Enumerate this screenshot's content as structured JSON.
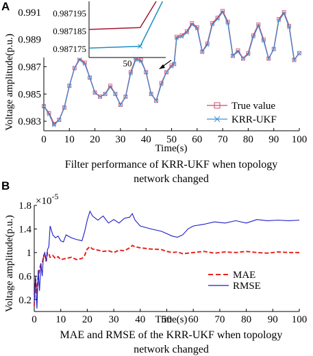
{
  "chart_data": [
    {
      "panel_label": "A",
      "type": "line",
      "caption": [
        "Filter performance of KRR-UKF when topology",
        "network changed"
      ],
      "xlabel": "Time(s)",
      "ylabel": "Voltage amplitude(p.u.)",
      "xlim": [
        0,
        100
      ],
      "ylim": [
        0.9823,
        0.9918
      ],
      "xticks": [
        0,
        10,
        20,
        30,
        40,
        50,
        60,
        70,
        80,
        90,
        100
      ],
      "yticks": [
        0.983,
        0.985,
        0.987,
        0.989,
        0.991
      ],
      "legend_position": "bottom-right",
      "series": [
        {
          "name": "True value",
          "color": "#c94b6a",
          "marker": "square",
          "x": [
            0,
            2,
            4,
            6,
            8,
            10,
            12,
            14,
            16,
            18,
            20,
            22,
            24,
            26,
            28,
            30,
            32,
            34,
            36,
            38,
            40,
            42,
            44,
            46,
            48,
            50,
            51,
            52,
            54,
            56,
            58,
            60,
            62,
            64,
            66,
            68,
            70,
            72,
            74,
            76,
            78,
            80,
            82,
            84,
            86,
            88,
            90,
            92,
            94,
            96,
            98,
            100
          ],
          "values": [
            0.9841,
            0.9836,
            0.9828,
            0.9831,
            0.984,
            0.9856,
            0.9869,
            0.9876,
            0.9873,
            0.9862,
            0.9851,
            0.9848,
            0.985,
            0.9856,
            0.985,
            0.9842,
            0.9848,
            0.9866,
            0.9876,
            0.9875,
            0.9866,
            0.985,
            0.9845,
            0.9858,
            0.9866,
            0.9871,
            0.9872,
            0.9892,
            0.9893,
            0.9896,
            0.9902,
            0.9899,
            0.9881,
            0.9887,
            0.9902,
            0.9906,
            0.9911,
            0.9903,
            0.9878,
            0.9882,
            0.9876,
            0.988,
            0.9893,
            0.9901,
            0.989,
            0.9876,
            0.9883,
            0.9905,
            0.991,
            0.99,
            0.9875,
            0.988
          ]
        },
        {
          "name": "KRR-UKF",
          "color": "#3b8fd4",
          "marker": "x",
          "x": [
            0,
            2,
            4,
            6,
            8,
            10,
            12,
            14,
            16,
            18,
            20,
            22,
            24,
            26,
            28,
            30,
            32,
            34,
            36,
            38,
            40,
            42,
            44,
            46,
            48,
            50,
            51,
            52,
            54,
            56,
            58,
            60,
            62,
            64,
            66,
            68,
            70,
            72,
            74,
            76,
            78,
            80,
            82,
            84,
            86,
            88,
            90,
            92,
            94,
            96,
            98,
            100
          ],
          "values": [
            0.9841,
            0.9835,
            0.9827,
            0.9831,
            0.984,
            0.9856,
            0.9869,
            0.9875,
            0.9872,
            0.9862,
            0.9851,
            0.9848,
            0.985,
            0.9855,
            0.985,
            0.9842,
            0.9848,
            0.9865,
            0.9875,
            0.9874,
            0.9866,
            0.985,
            0.9845,
            0.9857,
            0.9866,
            0.987,
            0.9872,
            0.9891,
            0.9892,
            0.9895,
            0.9901,
            0.9898,
            0.9881,
            0.9886,
            0.9901,
            0.9905,
            0.991,
            0.9902,
            0.9878,
            0.9881,
            0.9876,
            0.9879,
            0.9892,
            0.99,
            0.9889,
            0.9876,
            0.9883,
            0.9904,
            0.9909,
            0.9899,
            0.9875,
            0.988
          ]
        }
      ],
      "inset": {
        "yticks": [
          "0.987195",
          "0.987185",
          "0.987175"
        ],
        "xtick": "50",
        "xlim": [
          44,
          56
        ],
        "ylim": [
          0.98717,
          0.9872
        ],
        "series": [
          {
            "name": "True value",
            "x": [
              44,
              52,
              54.5
            ],
            "values": [
              0.987185,
              0.987186,
              0.9872
            ]
          },
          {
            "name": "KRR-UKF",
            "x": [
              44,
              52,
              55.5
            ],
            "values": [
              0.987175,
              0.987176,
              0.9872
            ]
          }
        ]
      }
    },
    {
      "panel_label": "B",
      "type": "line",
      "caption": [
        "MAE and RMSE of the KRR-UKF when topology",
        "network changed"
      ],
      "xlabel": "Time(s)",
      "ylabel": "Voltage amplitude(p.u.)",
      "scale_label": "×10",
      "scale_exponent": "-5",
      "xlim": [
        0,
        100
      ],
      "ylim": [
        0,
        1.8
      ],
      "xticks": [
        0,
        10,
        20,
        30,
        40,
        50,
        60,
        70,
        80,
        90,
        100
      ],
      "yticks": [
        "0.2",
        "0.6",
        "1",
        "1.4",
        "1.8"
      ],
      "ytick_values": [
        0.2,
        0.6,
        1.0,
        1.4,
        1.8
      ],
      "legend_position": "bottom-right",
      "series": [
        {
          "name": "MAE",
          "color": "#e8231e",
          "dash": "dashed",
          "x": [
            0,
            0.5,
            1,
            1.5,
            2,
            2.5,
            3,
            3.5,
            4,
            4.5,
            5,
            5.5,
            6,
            7,
            8,
            9,
            10,
            12,
            14,
            16,
            18,
            19,
            20,
            21,
            22,
            24,
            26,
            28,
            30,
            32,
            34,
            36,
            37,
            38,
            40,
            44,
            48,
            50,
            52,
            54,
            56,
            60,
            64,
            68,
            72,
            76,
            80,
            84,
            88,
            92,
            96,
            100
          ],
          "values": [
            0.1,
            0.55,
            0.3,
            0.6,
            0.72,
            0.8,
            0.82,
            0.92,
            0.95,
            0.85,
            1.0,
            0.98,
            0.92,
            0.95,
            0.9,
            0.93,
            0.88,
            0.9,
            0.92,
            0.88,
            0.9,
            0.95,
            1.06,
            1.1,
            1.06,
            1.04,
            1.02,
            1.03,
            1.0,
            1.04,
            1.03,
            1.08,
            1.12,
            1.1,
            1.08,
            1.06,
            1.05,
            1.02,
            1.0,
            1.01,
            0.98,
            1.0,
            1.02,
            0.99,
            1.01,
            1.0,
            1.02,
            1.0,
            0.99,
            1.01,
            1.0,
            1.0
          ]
        },
        {
          "name": "RMSE",
          "color": "#1a1ac8",
          "dash": "solid",
          "x": [
            0,
            0.5,
            1,
            1.5,
            2,
            2.5,
            3,
            3.5,
            4,
            4.5,
            5,
            5.5,
            6,
            7,
            8,
            9,
            10,
            11,
            12,
            14,
            16,
            18,
            19,
            20,
            21,
            22,
            24,
            26,
            28,
            30,
            32,
            34,
            36,
            37,
            38,
            40,
            44,
            48,
            50,
            52,
            54,
            56,
            58,
            60,
            64,
            68,
            72,
            76,
            80,
            84,
            88,
            92,
            96,
            100
          ],
          "values": [
            0.15,
            0.6,
            0.05,
            0.7,
            0.35,
            0.82,
            0.6,
            0.95,
            1.0,
            0.85,
            1.05,
            1.1,
            1.45,
            1.3,
            1.25,
            1.28,
            1.2,
            1.18,
            1.3,
            1.25,
            1.22,
            1.2,
            1.35,
            1.55,
            1.7,
            1.62,
            1.55,
            1.62,
            1.5,
            1.56,
            1.5,
            1.58,
            1.6,
            1.66,
            1.55,
            1.45,
            1.4,
            1.36,
            1.32,
            1.28,
            1.26,
            1.3,
            1.4,
            1.45,
            1.48,
            1.52,
            1.5,
            1.54,
            1.5,
            1.56,
            1.54,
            1.55,
            1.54,
            1.55
          ]
        }
      ]
    }
  ]
}
